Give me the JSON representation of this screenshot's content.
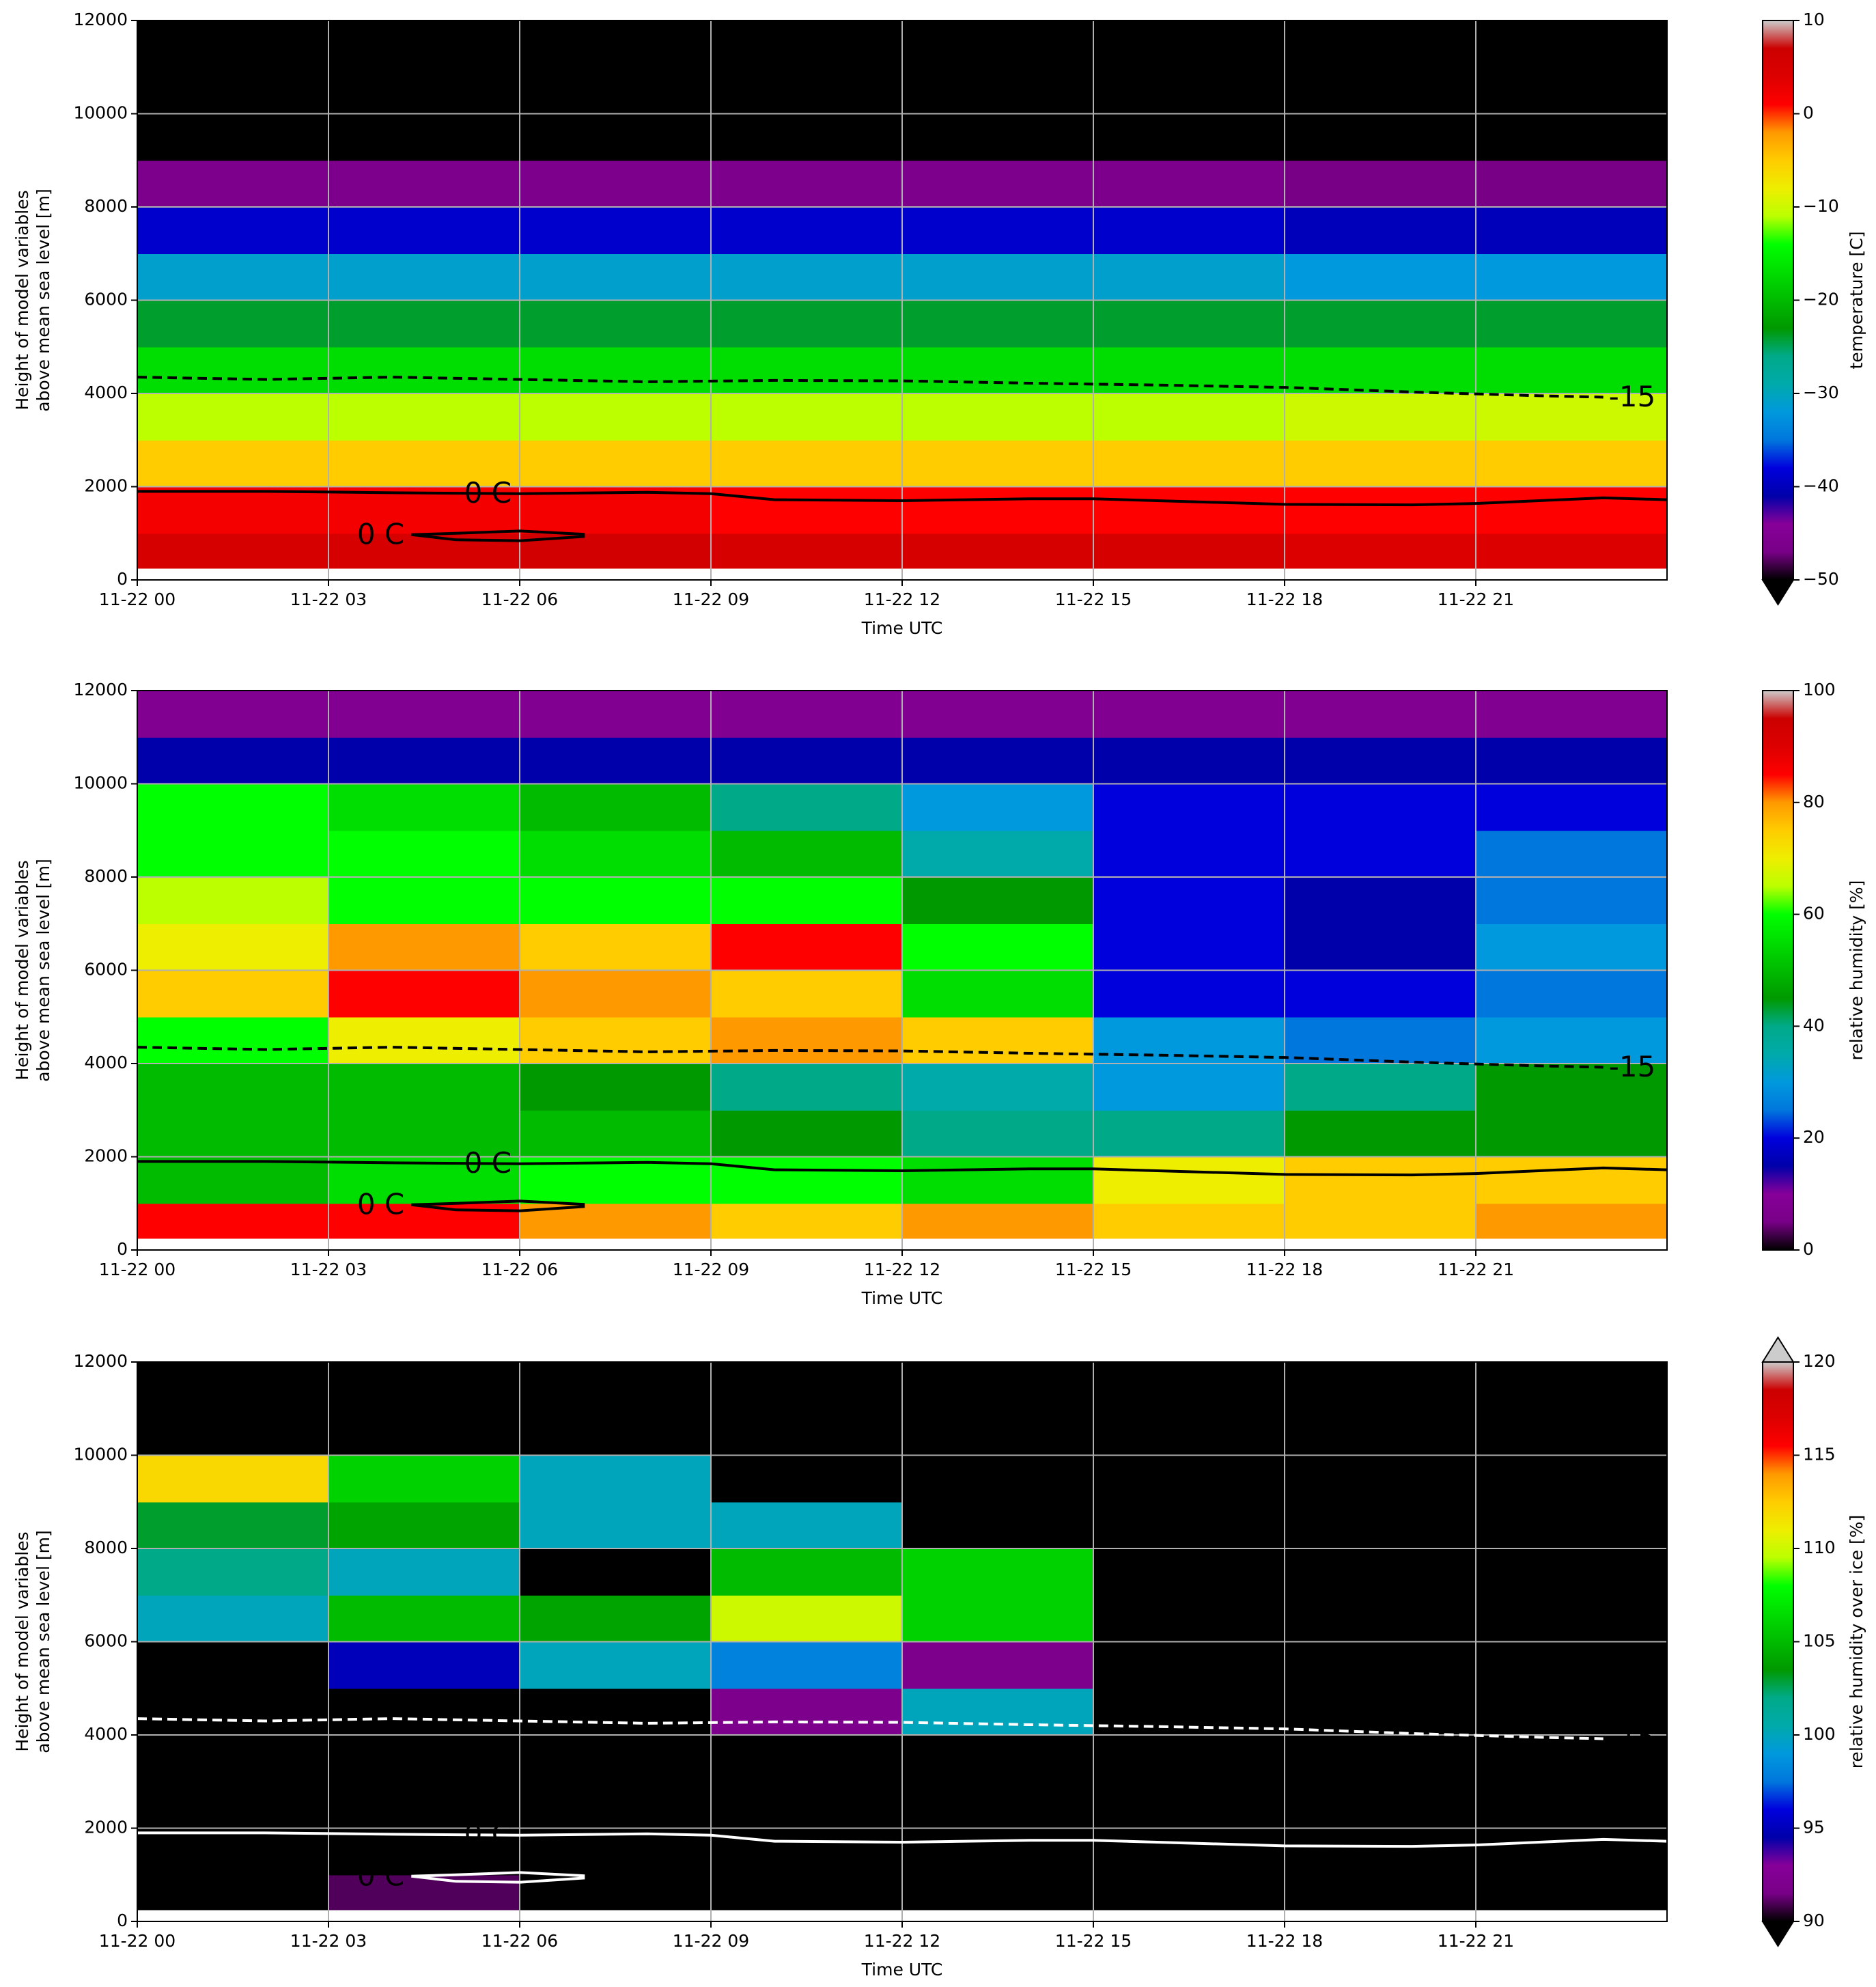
{
  "chart_data": [
    {
      "type": "heatmap",
      "ylabel": [
        "Height of model variables",
        "above mean sea level [m]"
      ],
      "xlabel": "Time UTC",
      "colorbar_label": "temperature [C]",
      "xlim": [
        0,
        24
      ],
      "ylim": [
        0,
        12000
      ],
      "xticks": [
        {
          "value": 0,
          "label": "11-22 00"
        },
        {
          "value": 3,
          "label": "11-22 03"
        },
        {
          "value": 6,
          "label": "11-22 06"
        },
        {
          "value": 9,
          "label": "11-22 09"
        },
        {
          "value": 12,
          "label": "11-22 12"
        },
        {
          "value": 15,
          "label": "11-22 15"
        },
        {
          "value": 18,
          "label": "11-22 18"
        },
        {
          "value": 21,
          "label": "11-22 21"
        }
      ],
      "yticks": [
        0,
        2000,
        4000,
        6000,
        8000,
        10000,
        12000
      ],
      "grid": true,
      "xbins": [
        0,
        3,
        6,
        9,
        12,
        15,
        18,
        21,
        24
      ],
      "ybins": [
        250,
        1000,
        2000,
        3000,
        4000,
        5000,
        6000,
        7000,
        8000,
        9000,
        10000,
        11000,
        12000
      ],
      "values": [
        [
          5,
          5,
          6,
          5,
          5,
          5,
          4,
          4
        ],
        [
          2,
          2,
          2,
          1,
          1,
          1,
          1,
          1
        ],
        [
          -5,
          -5,
          -5,
          -5,
          -5,
          -5,
          -5,
          -5
        ],
        [
          -11,
          -11,
          -11,
          -11,
          -11,
          -11,
          -10,
          -10
        ],
        [
          -17,
          -17,
          -17,
          -17,
          -17,
          -17,
          -17,
          -17
        ],
        [
          -24,
          -24,
          -24,
          -24,
          -24,
          -24,
          -24,
          -24
        ],
        [
          -31,
          -31,
          -31,
          -31,
          -31,
          -31,
          -32,
          -32
        ],
        [
          -39,
          -39,
          -39,
          -39,
          -39,
          -39,
          -40,
          -40
        ],
        [
          -46,
          -46,
          -46,
          -46,
          -46,
          -46,
          -47,
          -47
        ],
        [
          -60,
          -60,
          -60,
          -60,
          -60,
          -60,
          -60,
          -60
        ],
        [
          -60,
          -60,
          -60,
          -60,
          -60,
          -60,
          -60,
          -60
        ],
        [
          -60,
          -60,
          -60,
          -60,
          -60,
          -60,
          -60,
          -60
        ]
      ],
      "clim": [
        -50,
        10
      ],
      "cticks": [
        {
          "value": 10,
          "label": "10"
        },
        {
          "value": 0,
          "label": "0"
        },
        {
          "value": -10,
          "label": "−10"
        },
        {
          "value": -20,
          "label": "−20"
        },
        {
          "value": -30,
          "label": "−30"
        },
        {
          "value": -40,
          "label": "−40"
        },
        {
          "value": -50,
          "label": "−50"
        }
      ],
      "extend": "min",
      "colormap": [
        "#000000",
        "#780087",
        "#870099",
        "#0000aa",
        "#0000dd",
        "#0077dd",
        "#0099dd",
        "#00aaaa",
        "#00aa88",
        "#009900",
        "#00bb00",
        "#00dd00",
        "#00ff00",
        "#bbff00",
        "#eeee00",
        "#ffcc00",
        "#ff9900",
        "#ff0000",
        "#dd0000",
        "#cc0000",
        "#cccccc"
      ],
      "under_color": "#000000",
      "over_color": "#cccccc",
      "contour_color": "#000000",
      "contours": [
        {
          "label": "0 C",
          "dashed": false,
          "x": [
            0,
            2,
            4,
            6,
            8,
            9,
            10,
            12,
            14,
            15,
            16,
            18,
            20,
            21,
            23,
            24
          ],
          "y": [
            1900,
            1900,
            1870,
            1850,
            1880,
            1850,
            1720,
            1700,
            1740,
            1740,
            1700,
            1620,
            1610,
            1640,
            1760,
            1720
          ]
        },
        {
          "label": "0 C",
          "dashed": false,
          "x": [
            4.3,
            5,
            6,
            7,
            7,
            6,
            5,
            4.3
          ],
          "y": [
            970,
            1000,
            1050,
            980,
            930,
            840,
            860,
            970
          ]
        },
        {
          "label": "-15",
          "dashed": true,
          "x": [
            0,
            2,
            4,
            6,
            8,
            10,
            12,
            14,
            16,
            18,
            20,
            22,
            23
          ],
          "y": [
            4350,
            4300,
            4350,
            4300,
            4250,
            4280,
            4270,
            4220,
            4180,
            4130,
            4030,
            3950,
            3920
          ]
        }
      ]
    },
    {
      "type": "heatmap",
      "ylabel": [
        "Height of model variables",
        "above mean sea level [m]"
      ],
      "xlabel": "Time UTC",
      "colorbar_label": "relative humidity [%]",
      "xlim": [
        0,
        24
      ],
      "ylim": [
        0,
        12000
      ],
      "xticks": [
        {
          "value": 0,
          "label": "11-22 00"
        },
        {
          "value": 3,
          "label": "11-22 03"
        },
        {
          "value": 6,
          "label": "11-22 06"
        },
        {
          "value": 9,
          "label": "11-22 09"
        },
        {
          "value": 12,
          "label": "11-22 12"
        },
        {
          "value": 15,
          "label": "11-22 15"
        },
        {
          "value": 18,
          "label": "11-22 18"
        },
        {
          "value": 21,
          "label": "11-22 21"
        }
      ],
      "yticks": [
        0,
        2000,
        4000,
        6000,
        8000,
        10000,
        12000
      ],
      "grid": true,
      "xbins": [
        0,
        3,
        6,
        9,
        12,
        15,
        18,
        21,
        24
      ],
      "ybins": [
        250,
        1000,
        2000,
        3000,
        4000,
        5000,
        6000,
        7000,
        8000,
        9000,
        10000,
        11000,
        12000
      ],
      "values": [
        [
          85,
          85,
          80,
          75,
          80,
          75,
          75,
          80
        ],
        [
          50,
          55,
          60,
          60,
          55,
          70,
          75,
          75
        ],
        [
          50,
          50,
          50,
          45,
          40,
          40,
          45,
          45
        ],
        [
          50,
          50,
          45,
          40,
          35,
          30,
          40,
          45
        ],
        [
          60,
          70,
          75,
          80,
          75,
          30,
          25,
          30
        ],
        [
          75,
          85,
          80,
          75,
          55,
          20,
          20,
          25
        ],
        [
          70,
          80,
          75,
          85,
          60,
          20,
          15,
          30
        ],
        [
          65,
          60,
          60,
          60,
          45,
          20,
          15,
          25
        ],
        [
          60,
          60,
          55,
          50,
          35,
          20,
          20,
          25
        ],
        [
          60,
          55,
          50,
          40,
          30,
          20,
          20,
          20
        ],
        [
          15,
          15,
          15,
          15,
          15,
          15,
          15,
          15
        ],
        [
          8,
          8,
          8,
          8,
          8,
          8,
          8,
          8
        ]
      ],
      "clim": [
        0,
        100
      ],
      "cticks": [
        0,
        20,
        40,
        60,
        80,
        100
      ],
      "extend": "neither",
      "colormap": [
        "#000000",
        "#780087",
        "#870099",
        "#0000aa",
        "#0000dd",
        "#0077dd",
        "#0099dd",
        "#00aaaa",
        "#00aa88",
        "#009900",
        "#00bb00",
        "#00dd00",
        "#00ff00",
        "#bbff00",
        "#eeee00",
        "#ffcc00",
        "#ff9900",
        "#ff0000",
        "#dd0000",
        "#cc0000",
        "#cccccc"
      ],
      "under_color": "#000000",
      "over_color": "#cccccc",
      "contour_color": "#000000",
      "contours": [
        {
          "label": "0 C",
          "dashed": false,
          "x": [
            0,
            2,
            4,
            6,
            8,
            9,
            10,
            12,
            14,
            15,
            16,
            18,
            20,
            21,
            23,
            24
          ],
          "y": [
            1900,
            1900,
            1870,
            1850,
            1880,
            1850,
            1720,
            1700,
            1740,
            1740,
            1700,
            1620,
            1610,
            1640,
            1760,
            1720
          ]
        },
        {
          "label": "0 C",
          "dashed": false,
          "x": [
            4.3,
            5,
            6,
            7,
            7,
            6,
            5,
            4.3
          ],
          "y": [
            970,
            1000,
            1050,
            980,
            930,
            840,
            860,
            970
          ]
        },
        {
          "label": "-15",
          "dashed": true,
          "x": [
            0,
            2,
            4,
            6,
            8,
            10,
            12,
            14,
            16,
            18,
            20,
            22,
            23
          ],
          "y": [
            4350,
            4300,
            4350,
            4300,
            4250,
            4280,
            4270,
            4220,
            4180,
            4130,
            4030,
            3950,
            3920
          ]
        }
      ]
    },
    {
      "type": "heatmap",
      "ylabel": [
        "Height of model variables",
        "above mean sea level [m]"
      ],
      "xlabel": "Time UTC",
      "colorbar_label": "relative humidity over ice [%]",
      "xlim": [
        0,
        24
      ],
      "ylim": [
        0,
        12000
      ],
      "xticks": [
        {
          "value": 0,
          "label": "11-22 00"
        },
        {
          "value": 3,
          "label": "11-22 03"
        },
        {
          "value": 6,
          "label": "11-22 06"
        },
        {
          "value": 9,
          "label": "11-22 09"
        },
        {
          "value": 12,
          "label": "11-22 12"
        },
        {
          "value": 15,
          "label": "11-22 15"
        },
        {
          "value": 18,
          "label": "11-22 18"
        },
        {
          "value": 21,
          "label": "11-22 21"
        }
      ],
      "yticks": [
        0,
        2000,
        4000,
        6000,
        8000,
        10000,
        12000
      ],
      "grid": true,
      "xbins": [
        0,
        3,
        6,
        9,
        12,
        15,
        18,
        21,
        24
      ],
      "ybins": [
        250,
        1000,
        2000,
        3000,
        4000,
        5000,
        6000,
        7000,
        8000,
        9000,
        10000,
        11000,
        12000
      ],
      "values": [
        [
          80,
          91,
          80,
          80,
          80,
          80,
          80,
          80
        ],
        [
          80,
          80,
          80,
          80,
          80,
          80,
          80,
          80
        ],
        [
          80,
          80,
          80,
          80,
          80,
          80,
          80,
          80
        ],
        [
          80,
          80,
          80,
          80,
          80,
          80,
          80,
          80
        ],
        [
          80,
          80,
          85,
          92,
          100,
          85,
          80,
          80
        ],
        [
          80,
          95,
          100,
          98,
          92,
          80,
          80,
          80
        ],
        [
          100,
          105,
          104,
          110,
          106,
          80,
          80,
          80
        ],
        [
          102,
          100,
          85,
          105,
          106,
          80,
          80,
          80
        ],
        [
          103,
          104,
          100,
          100,
          85,
          80,
          80,
          80
        ],
        [
          112,
          106,
          100,
          80,
          80,
          80,
          80,
          80
        ],
        [
          80,
          80,
          80,
          80,
          80,
          80,
          80,
          80
        ],
        [
          80,
          80,
          80,
          80,
          80,
          80,
          80,
          80
        ]
      ],
      "clim": [
        90,
        120
      ],
      "cticks": [
        90,
        95,
        100,
        105,
        110,
        115,
        120
      ],
      "extend": "both",
      "colormap": [
        "#000000",
        "#780087",
        "#870099",
        "#0000aa",
        "#0000dd",
        "#0077dd",
        "#0099dd",
        "#00aaaa",
        "#00aa88",
        "#009900",
        "#00bb00",
        "#00dd00",
        "#00ff00",
        "#bbff00",
        "#eeee00",
        "#ffcc00",
        "#ff9900",
        "#ff0000",
        "#dd0000",
        "#cc0000",
        "#cccccc"
      ],
      "under_color": "#000000",
      "over_color": "#cccccc",
      "contour_color": "#ffffff",
      "contours": [
        {
          "label": "0 C",
          "dashed": false,
          "x": [
            0,
            2,
            4,
            6,
            8,
            9,
            10,
            12,
            14,
            15,
            16,
            18,
            20,
            21,
            23,
            24
          ],
          "y": [
            1900,
            1900,
            1870,
            1850,
            1880,
            1850,
            1720,
            1700,
            1740,
            1740,
            1700,
            1620,
            1610,
            1640,
            1760,
            1720
          ]
        },
        {
          "label": "0 C",
          "dashed": false,
          "x": [
            4.3,
            5,
            6,
            7,
            7,
            6,
            5,
            4.3
          ],
          "y": [
            970,
            1000,
            1050,
            980,
            930,
            840,
            860,
            970
          ]
        },
        {
          "label": "-15",
          "dashed": true,
          "x": [
            0,
            2,
            4,
            6,
            8,
            10,
            12,
            14,
            16,
            18,
            20,
            22,
            23
          ],
          "y": [
            4350,
            4300,
            4350,
            4300,
            4250,
            4280,
            4270,
            4220,
            4180,
            4130,
            4030,
            3950,
            3920
          ]
        }
      ]
    }
  ]
}
